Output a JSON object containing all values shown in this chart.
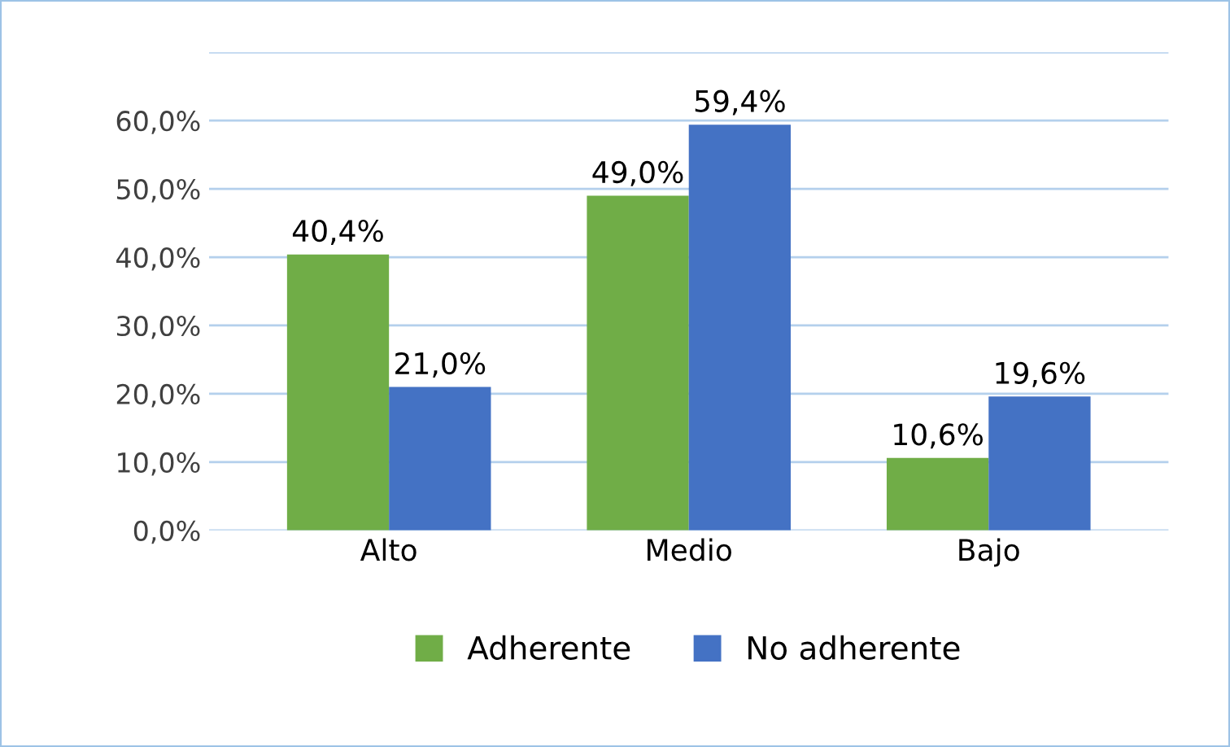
{
  "chart_data": {
    "type": "bar",
    "categories": [
      "Alto",
      "Medio",
      "Bajo"
    ],
    "series": [
      {
        "name": "Adherente",
        "color": "#70ad47",
        "values": [
          40.4,
          49.0,
          10.6
        ],
        "value_labels": [
          "40,4%",
          "49,0%",
          "10,6%"
        ]
      },
      {
        "name": "No adherente",
        "color": "#4472c4",
        "values": [
          21.0,
          59.4,
          19.6
        ],
        "value_labels": [
          "21,0%",
          "59,4%",
          "19,6%"
        ]
      }
    ],
    "ylim": [
      0,
      70
    ],
    "yticks": [
      {
        "value": 0,
        "label": "0,0%"
      },
      {
        "value": 10,
        "label": "10,0%"
      },
      {
        "value": 20,
        "label": "20,0%"
      },
      {
        "value": 30,
        "label": "30,0%"
      },
      {
        "value": 40,
        "label": "40,0%"
      },
      {
        "value": 50,
        "label": "50,0%"
      },
      {
        "value": 60,
        "label": "60,0%"
      },
      {
        "value": 70,
        "label": null
      }
    ],
    "grid": "y",
    "legend": "bottom"
  }
}
